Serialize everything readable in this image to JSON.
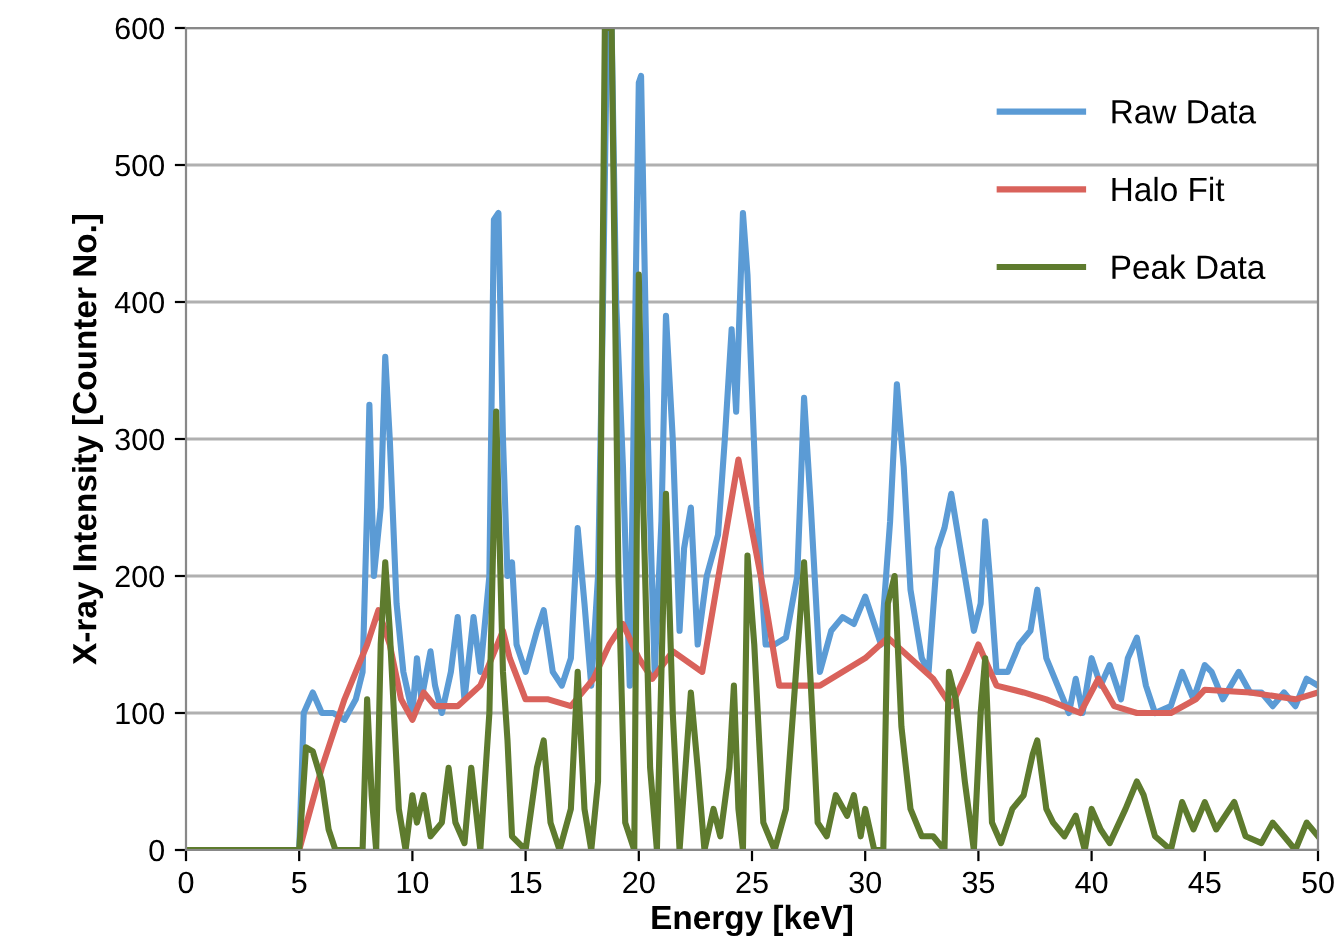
{
  "chart_data": {
    "type": "line",
    "xlabel": "Energy [keV]",
    "ylabel": "X-ray Intensity [Counter No.]",
    "xlim": [
      0,
      50
    ],
    "xticks": [
      0,
      5,
      10,
      15,
      20,
      25,
      30,
      35,
      40,
      45,
      50
    ],
    "ylim": [
      0,
      600
    ],
    "yticks": [
      0,
      100,
      200,
      300,
      400,
      500,
      600
    ],
    "grid": "y",
    "legend": "top right",
    "marker": "none",
    "series": [
      {
        "name": "Raw Data",
        "color": "#5b9bd5",
        "line_style": "solid",
        "x": [
          0,
          5,
          5.2,
          5.6,
          6,
          6.5,
          7,
          7.5,
          7.8,
          8.0,
          8.1,
          8.3,
          8.6,
          8.8,
          9.0,
          9.3,
          9.6,
          10,
          10.2,
          10.4,
          10.8,
          11.0,
          11.3,
          11.7,
          12.0,
          12.3,
          12.7,
          13.0,
          13.4,
          13.6,
          13.8,
          14.0,
          14.2,
          14.4,
          14.6,
          15.0,
          15.5,
          15.8,
          16.2,
          16.6,
          17.0,
          17.3,
          17.6,
          17.9,
          18.2,
          18.4,
          18.6,
          18.8,
          19.0,
          19.3,
          19.6,
          20.0,
          20.1,
          20.4,
          20.7,
          21.0,
          21.2,
          21.5,
          21.8,
          22.0,
          22.3,
          22.6,
          23.0,
          23.5,
          23.8,
          24.1,
          24.3,
          24.6,
          24.8,
          25.2,
          25.6,
          26.0,
          26.5,
          27.0,
          27.3,
          27.6,
          28.0,
          28.5,
          29.0,
          29.5,
          30.0,
          30.4,
          30.7,
          31.1,
          31.4,
          31.7,
          32.0,
          32.5,
          32.8,
          33.2,
          33.5,
          33.8,
          34.3,
          34.8,
          35.1,
          35.3,
          35.5,
          35.8,
          36.3,
          36.8,
          37.3,
          37.6,
          38.0,
          38.5,
          39.0,
          39.3,
          39.6,
          40.0,
          40.4,
          40.8,
          41.3,
          41.6,
          42.0,
          42.4,
          42.8,
          43.5,
          44.0,
          44.5,
          45.0,
          45.3,
          45.8,
          46.5,
          47.0,
          47.5,
          48.0,
          48.5,
          49.0,
          49.5,
          50.0
        ],
        "values": [
          0,
          0,
          100,
          115,
          100,
          100,
          95,
          110,
          130,
          250,
          325,
          200,
          250,
          360,
          300,
          180,
          130,
          100,
          140,
          110,
          145,
          120,
          100,
          130,
          170,
          110,
          170,
          130,
          200,
          460,
          465,
          300,
          200,
          210,
          150,
          130,
          160,
          175,
          130,
          120,
          140,
          235,
          180,
          120,
          200,
          380,
          600,
          600,
          400,
          280,
          120,
          560,
          565,
          300,
          130,
          240,
          390,
          300,
          160,
          220,
          250,
          150,
          200,
          230,
          300,
          380,
          320,
          465,
          420,
          250,
          150,
          150,
          155,
          200,
          330,
          250,
          130,
          160,
          170,
          165,
          185,
          165,
          150,
          240,
          340,
          280,
          190,
          140,
          130,
          220,
          235,
          260,
          210,
          160,
          180,
          240,
          200,
          130,
          130,
          150,
          160,
          190,
          140,
          120,
          100,
          125,
          100,
          140,
          120,
          135,
          110,
          140,
          155,
          120,
          100,
          105,
          130,
          110,
          135,
          130,
          110,
          130,
          115,
          115,
          105,
          115,
          105,
          125,
          120
        ]
      },
      {
        "name": "Halo Fit",
        "color": "#d9625b",
        "line_style": "solid",
        "x": [
          0,
          5,
          6,
          7,
          8,
          8.5,
          9,
          9.5,
          10,
          10.5,
          11,
          12,
          13,
          14,
          14.3,
          15,
          16,
          17,
          18,
          18.7,
          19.3,
          20,
          20.6,
          21.5,
          22.8,
          24.4,
          25.5,
          26.2,
          28,
          30,
          31,
          32,
          33,
          33.8,
          34.5,
          35,
          35.8,
          37,
          38,
          39.5,
          40.3,
          41,
          42,
          43.5,
          44.6,
          45,
          47,
          49,
          50
        ],
        "values": [
          0,
          0,
          60,
          110,
          150,
          175,
          150,
          110,
          95,
          115,
          105,
          105,
          120,
          160,
          140,
          110,
          110,
          105,
          125,
          150,
          165,
          140,
          125,
          145,
          130,
          285,
          190,
          120,
          120,
          140,
          155,
          140,
          125,
          105,
          130,
          150,
          120,
          115,
          110,
          100,
          125,
          105,
          100,
          100,
          110,
          117,
          115,
          110,
          115
        ]
      },
      {
        "name": "Peak Data",
        "color": "#5e7b2e",
        "line_style": "solid",
        "x": [
          0,
          5,
          5.3,
          5.6,
          6.0,
          6.3,
          6.6,
          7.8,
          8.0,
          8.2,
          8.4,
          8.6,
          8.8,
          9.0,
          9.4,
          9.7,
          10.0,
          10.2,
          10.5,
          10.8,
          11.3,
          11.6,
          11.9,
          12.3,
          12.6,
          13.0,
          13.4,
          13.7,
          14.0,
          14.2,
          14.4,
          15.0,
          15.5,
          15.8,
          16.1,
          16.5,
          17.0,
          17.3,
          17.6,
          17.9,
          18.2,
          18.5,
          18.8,
          19.1,
          19.4,
          19.8,
          20.0,
          20.2,
          20.5,
          20.8,
          21.2,
          21.5,
          21.8,
          22.3,
          22.6,
          22.9,
          23.3,
          23.6,
          24.0,
          24.2,
          24.4,
          24.6,
          24.8,
          25.1,
          25.5,
          26.0,
          26.5,
          27.3,
          27.6,
          27.9,
          28.3,
          28.7,
          29.2,
          29.5,
          29.8,
          30.0,
          30.4,
          30.8,
          31.0,
          31.3,
          31.6,
          32.0,
          32.5,
          33.0,
          33.5,
          33.7,
          34.0,
          34.4,
          34.8,
          35.1,
          35.3,
          35.6,
          36.0,
          36.5,
          37.0,
          37.4,
          37.6,
          38.0,
          38.3,
          38.8,
          39.3,
          39.7,
          40.0,
          40.4,
          40.8,
          41.5,
          42.0,
          42.3,
          42.8,
          43.5,
          44.0,
          44.5,
          45.0,
          45.5,
          46.3,
          46.8,
          47.5,
          48.0,
          48.5,
          49.0,
          49.5,
          50.0
        ],
        "values": [
          0,
          0,
          75,
          72,
          50,
          15,
          0,
          0,
          110,
          40,
          0,
          150,
          210,
          160,
          30,
          0,
          40,
          20,
          40,
          10,
          20,
          60,
          20,
          5,
          60,
          0,
          100,
          320,
          130,
          80,
          10,
          0,
          60,
          80,
          20,
          0,
          30,
          130,
          30,
          0,
          50,
          600,
          600,
          200,
          20,
          0,
          420,
          250,
          60,
          0,
          260,
          100,
          0,
          115,
          60,
          0,
          30,
          10,
          60,
          120,
          30,
          0,
          215,
          150,
          20,
          0,
          30,
          210,
          120,
          20,
          10,
          40,
          25,
          40,
          10,
          30,
          0,
          0,
          180,
          200,
          90,
          30,
          10,
          10,
          0,
          130,
          110,
          50,
          0,
          100,
          140,
          20,
          5,
          30,
          40,
          70,
          80,
          30,
          20,
          10,
          25,
          0,
          30,
          15,
          5,
          30,
          50,
          40,
          10,
          0,
          35,
          15,
          35,
          15,
          35,
          10,
          5,
          20,
          10,
          0,
          20,
          10
        ]
      }
    ]
  }
}
